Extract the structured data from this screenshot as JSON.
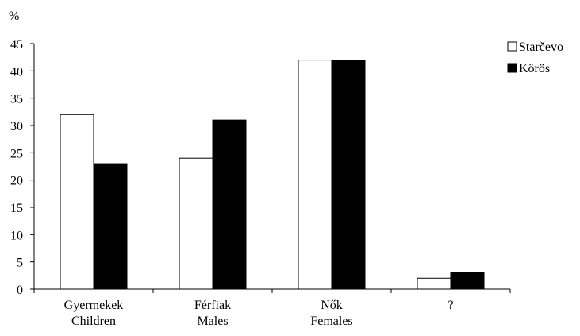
{
  "chart_data": {
    "type": "bar",
    "ylabel": "%",
    "ylim": [
      0,
      45
    ],
    "ytick_step": 5,
    "categories": [
      [
        "Gyermekek",
        "Children"
      ],
      [
        "Férfiak",
        "Males"
      ],
      [
        "Nők",
        "Females"
      ],
      [
        "?"
      ]
    ],
    "series": [
      {
        "name": "Starčevo",
        "color": "#ffffff",
        "values": [
          32,
          24,
          42,
          2
        ]
      },
      {
        "name": "Körös",
        "color": "#000000",
        "values": [
          23,
          31,
          42,
          3
        ]
      }
    ],
    "legend_position": "top-right",
    "grid": false
  }
}
